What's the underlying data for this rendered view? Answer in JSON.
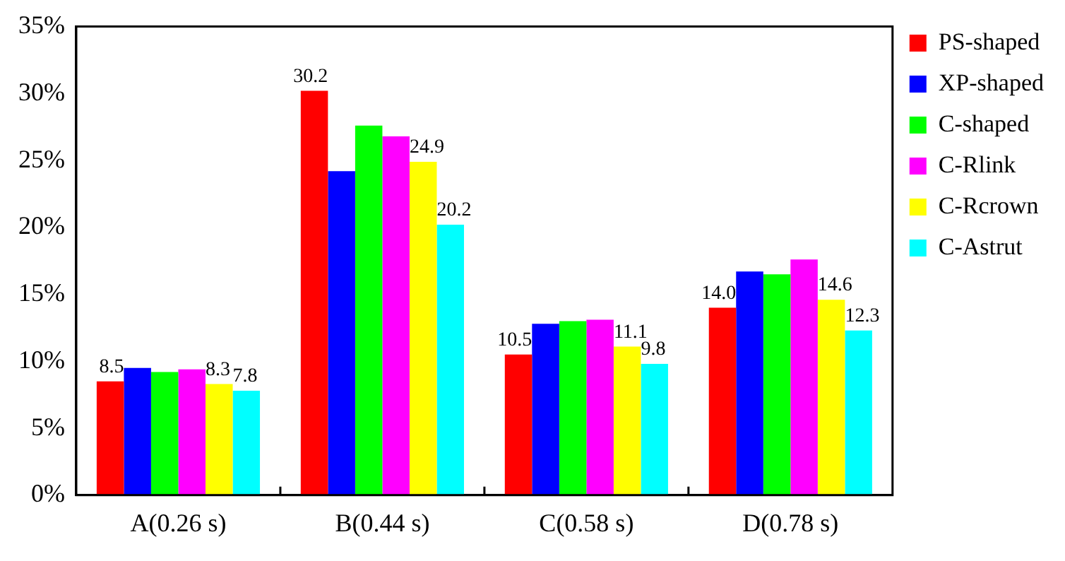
{
  "chart_data": {
    "type": "bar",
    "categories": [
      "A(0.26 s)",
      "B(0.44 s)",
      "C(0.58 s)",
      "D(0.78 s)"
    ],
    "series": [
      {
        "name": "PS-shaped",
        "color": "#ff0000",
        "values": [
          8.5,
          30.2,
          10.5,
          14.0
        ],
        "value_labels": [
          "8.5",
          "30.2",
          "10.5",
          "14.0"
        ]
      },
      {
        "name": "XP-shaped",
        "color": "#0000ff",
        "values": [
          9.5,
          24.2,
          12.8,
          16.7
        ]
      },
      {
        "name": "C-shaped",
        "color": "#00ff00",
        "values": [
          9.2,
          27.6,
          13.0,
          16.5
        ]
      },
      {
        "name": "C-Rlink",
        "color": "#ff00ff",
        "values": [
          9.4,
          26.8,
          13.1,
          17.6
        ]
      },
      {
        "name": "C-Rcrown",
        "color": "#ffff00",
        "values": [
          8.3,
          24.9,
          11.1,
          14.6
        ],
        "value_labels": [
          "8.3",
          "24.9",
          "11.1",
          "14.6"
        ]
      },
      {
        "name": "C-Astrut",
        "color": "#00ffff",
        "values": [
          7.8,
          20.2,
          9.8,
          12.3
        ],
        "value_labels": [
          "7.8",
          "20.2",
          "9.8",
          "12.3"
        ]
      }
    ],
    "ylim": [
      0,
      35
    ],
    "yticks": [
      {
        "value": 0,
        "label": "0%"
      },
      {
        "value": 5,
        "label": "5%"
      },
      {
        "value": 10,
        "label": "10%"
      },
      {
        "value": 15,
        "label": "15%"
      },
      {
        "value": 20,
        "label": "20%"
      },
      {
        "value": 25,
        "label": "25%"
      },
      {
        "value": 30,
        "label": "30%"
      },
      {
        "value": 35,
        "label": "35%"
      }
    ],
    "grid": false,
    "legend": "right"
  }
}
